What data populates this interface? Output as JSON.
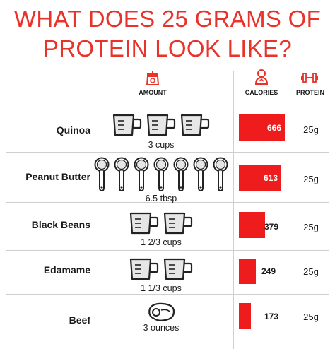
{
  "title": {
    "line1": "WHAT DOES 25 GRAMS OF",
    "line2": "PROTEIN LOOK LIKE?"
  },
  "columns": {
    "amount": "AMOUNT",
    "calories": "CALORIES",
    "protein": "PROTEIN"
  },
  "colors": {
    "accent": "#e8322a",
    "bar": "#ee1c1c"
  },
  "header_icons": [
    "scale-icon",
    "person-icon",
    "dumbbell-icon"
  ],
  "foods": [
    {
      "name": "Quinoa",
      "amount": "3 cups",
      "calories": "666",
      "calorie_value": 666,
      "protein": "25g",
      "icon": "measuring-cup-icon",
      "icon_count": 3
    },
    {
      "name": "Peanut Butter",
      "amount": "6.5 tbsp",
      "calories": "613",
      "calorie_value": 613,
      "protein": "25g",
      "icon": "measuring-spoon-icon",
      "icon_count": 7
    },
    {
      "name": "Black Beans",
      "amount": "1  2/3 cups",
      "calories": "379",
      "calorie_value": 379,
      "protein": "25g",
      "icon": "measuring-cup-icon",
      "icon_count": 2
    },
    {
      "name": "Edamame",
      "amount": "1 1/3 cups",
      "calories": "249",
      "calorie_value": 249,
      "protein": "25g",
      "icon": "measuring-cup-icon",
      "icon_count": 2
    },
    {
      "name": "Beef",
      "amount": "3 ounces",
      "calories": "173",
      "calorie_value": 173,
      "protein": "25g",
      "icon": "steak-icon",
      "icon_count": 1
    }
  ]
}
